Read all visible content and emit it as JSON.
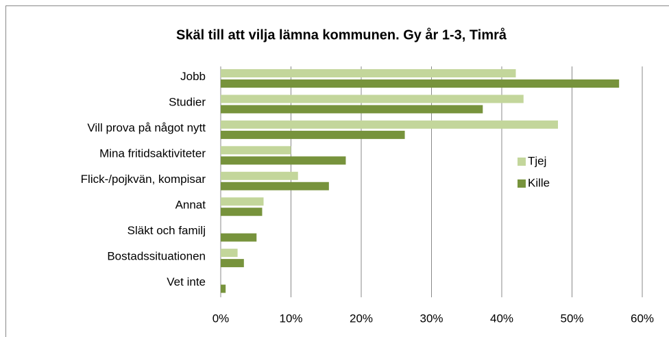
{
  "chart_data": {
    "type": "bar",
    "orientation": "horizontal",
    "title": "Skäl till att vilja lämna kommunen. Gy år 1-3, Timrå",
    "categories": [
      "Jobb",
      "Studier",
      "Vill prova på något nytt",
      "Mina fritidsaktiviteter",
      "Flick-/pojkvän, kompisar",
      "Annat",
      "Släkt och familj",
      "Bostadssituationen",
      "Vet inte"
    ],
    "series": [
      {
        "name": "Tjej",
        "color": "#c3d69b",
        "values": [
          42,
          43.1,
          48,
          10,
          11,
          6.1,
          0,
          2.4,
          0
        ]
      },
      {
        "name": "Kille",
        "color": "#77933c",
        "values": [
          56.7,
          37.3,
          26.2,
          17.8,
          15.4,
          5.9,
          5.1,
          3.3,
          0.7
        ]
      }
    ],
    "xlim": [
      0,
      60
    ],
    "xticks": [
      {
        "value": 0,
        "label": "0%"
      },
      {
        "value": 10,
        "label": "10%"
      },
      {
        "value": 20,
        "label": "20%"
      },
      {
        "value": 30,
        "label": "30%"
      },
      {
        "value": 40,
        "label": "40%"
      },
      {
        "value": 50,
        "label": "50%"
      },
      {
        "value": 60,
        "label": "60%"
      }
    ],
    "grid": true,
    "legend": "right"
  }
}
